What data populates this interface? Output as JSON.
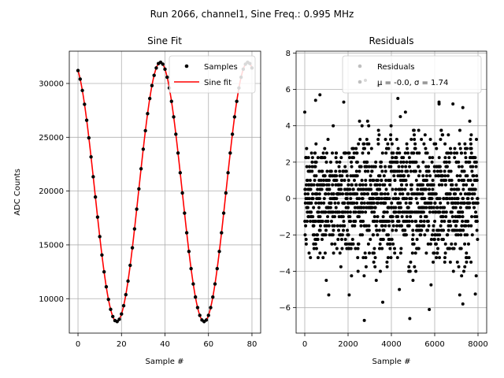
{
  "figure": {
    "suptitle": "Run 2066, channel1, Sine Freq.: 0.995 MHz"
  },
  "chart_data": [
    {
      "type": "line",
      "title": "Sine Fit",
      "xlabel": "Sample #",
      "ylabel": "ADC Counts",
      "xlim": [
        -4,
        84
      ],
      "ylim": [
        6800,
        33000
      ],
      "xticks": [
        0,
        20,
        40,
        60,
        80
      ],
      "yticks": [
        10000,
        15000,
        20000,
        25000,
        30000
      ],
      "grid": true,
      "legend": "upper right",
      "series": [
        {
          "name": "Samples",
          "style": "points",
          "color": "#000000",
          "sine_model": {
            "offset": 19920,
            "amplitude": 12050,
            "period_samples": 40.2,
            "phase_samples": -2.3
          },
          "x": [
            0,
            1,
            2,
            3,
            4,
            5,
            6,
            7,
            8,
            9,
            10,
            11,
            12,
            13,
            14,
            15,
            16,
            17,
            18,
            19,
            20,
            21,
            22,
            23,
            24,
            25,
            26,
            27,
            28,
            29,
            30,
            31,
            32,
            33,
            34,
            35,
            36,
            37,
            38,
            39,
            40,
            41,
            42,
            43,
            44,
            45,
            46,
            47,
            48,
            49,
            50,
            51,
            52,
            53,
            54,
            55,
            56,
            57,
            58,
            59,
            60,
            61,
            62,
            63,
            64,
            65,
            66,
            67,
            68,
            69,
            70,
            71,
            72,
            73,
            74,
            75,
            76,
            77,
            78,
            79,
            80
          ]
        },
        {
          "name": "Sine fit",
          "style": "line",
          "color": "#ff0000"
        }
      ]
    },
    {
      "type": "scatter",
      "title": "Residuals",
      "xlabel": "Sample #",
      "xlim": [
        -400,
        8400
      ],
      "ylim": [
        -7.4,
        8.1
      ],
      "xticks": [
        0,
        2000,
        4000,
        6000,
        8000
      ],
      "yticks": [
        -6,
        -4,
        -2,
        0,
        2,
        4,
        6,
        8
      ],
      "grid": true,
      "legend": "upper right",
      "series": [
        {
          "name": "Residuals",
          "color": "#000000",
          "count": 8000,
          "distribution": {
            "mu": -0.0,
            "sigma": 1.74
          },
          "outliers": [
            [
              2750,
              -6.7
            ],
            [
              4850,
              -6.6
            ],
            [
              5750,
              -6.1
            ],
            [
              7300,
              -5.8
            ],
            [
              3600,
              -5.7
            ],
            [
              700,
              5.7
            ],
            [
              2800,
              6.5
            ],
            [
              3400,
              6.2
            ],
            [
              4300,
              5.5
            ],
            [
              6200,
              5.3
            ],
            [
              1800,
              5.3
            ],
            [
              500,
              5.4
            ]
          ]
        }
      ],
      "stats_text": "μ = -0.0, σ = 1.74"
    }
  ]
}
